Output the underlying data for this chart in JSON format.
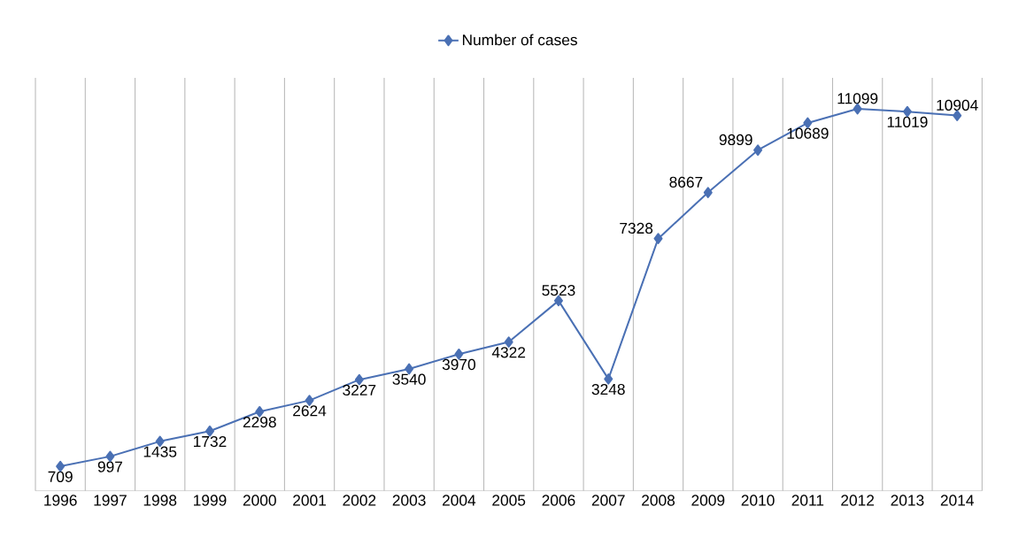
{
  "chart_data": {
    "type": "line",
    "categories": [
      "1996",
      "1997",
      "1998",
      "1999",
      "2000",
      "2001",
      "2002",
      "2003",
      "2004",
      "2005",
      "2006",
      "2007",
      "2008",
      "2009",
      "2010",
      "2011",
      "2012",
      "2013",
      "2014"
    ],
    "series": [
      {
        "name": "Number of cases",
        "color": "#4a70b4",
        "values": [
          709,
          997,
          1435,
          1732,
          2298,
          2624,
          3227,
          3540,
          3970,
          4322,
          5523,
          3248,
          7328,
          8667,
          9899,
          10689,
          11099,
          11019,
          10904
        ]
      }
    ],
    "ylim": [
      0,
      12000
    ],
    "tick_labels": "x",
    "data_labels": true,
    "grid": "x",
    "legend": "top",
    "marker": "diamond",
    "line_style": "solid"
  }
}
